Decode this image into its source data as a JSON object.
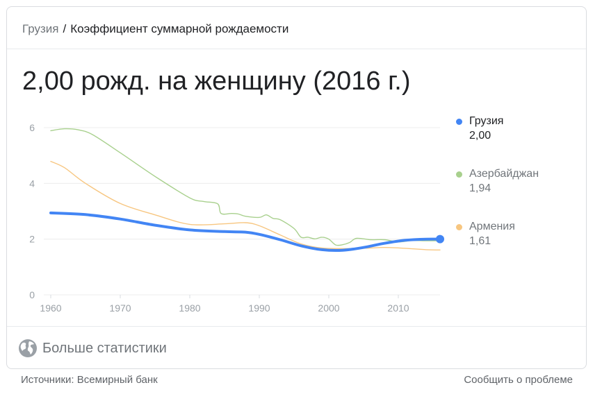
{
  "breadcrumb": {
    "country": "Грузия",
    "separator": "/",
    "metric": "Коэффициент суммарной рождаемости"
  },
  "headline": "2,00 рожд. на женщину (2016 г.)",
  "legend": [
    {
      "name": "Грузия",
      "value": "2,00",
      "color": "#4285f4",
      "active": true
    },
    {
      "name": "Азербайджан",
      "value": "1,94",
      "color": "#a8d08d",
      "active": false
    },
    {
      "name": "Армения",
      "value": "1,61",
      "color": "#f7c680",
      "active": false
    }
  ],
  "footer": {
    "more_label": "Больше статистики",
    "sources": "Источники: Всемирный банк",
    "report": "Сообщить о проблеме"
  },
  "icons": {
    "more": "globe-icon"
  },
  "chart_data": {
    "type": "line",
    "xlim": [
      1960,
      2016
    ],
    "ylim": [
      0,
      6
    ],
    "xticks": [
      "1960",
      "1970",
      "1980",
      "1990",
      "2000",
      "2010"
    ],
    "yticks": [
      "0",
      "2",
      "4",
      "6"
    ],
    "grid": true,
    "legend_position": "right",
    "series": [
      {
        "name": "Грузия",
        "color": "#4285f4",
        "x": [
          1960,
          1965,
          1970,
          1975,
          1980,
          1985,
          1988,
          1990,
          1993,
          1996,
          1999,
          2002,
          2005,
          2008,
          2011,
          2014,
          2016
        ],
        "y": [
          2.94,
          2.88,
          2.72,
          2.5,
          2.33,
          2.27,
          2.25,
          2.17,
          1.98,
          1.76,
          1.62,
          1.6,
          1.7,
          1.85,
          1.96,
          2.0,
          2.0
        ]
      },
      {
        "name": "Азербайджан",
        "color": "#a8d08d",
        "x": [
          1960,
          1962,
          1964,
          1966,
          1970,
          1975,
          1980,
          1982,
          1984,
          1984.5,
          1986,
          1987,
          1988,
          1990,
          1991,
          1992,
          1993,
          1995,
          1996,
          1997,
          1998,
          1999,
          2000,
          2001,
          2002,
          2003,
          2004,
          2006,
          2008,
          2010,
          2012,
          2014,
          2016
        ],
        "y": [
          5.89,
          5.96,
          5.92,
          5.75,
          5.1,
          4.25,
          3.48,
          3.35,
          3.27,
          2.92,
          2.92,
          2.9,
          2.82,
          2.78,
          2.87,
          2.74,
          2.7,
          2.38,
          2.07,
          2.07,
          2.01,
          2.07,
          2.0,
          1.79,
          1.8,
          1.88,
          2.03,
          1.98,
          1.98,
          1.9,
          1.95,
          1.94,
          1.94
        ]
      },
      {
        "name": "Армения",
        "color": "#f7c680",
        "x": [
          1960,
          1962,
          1965,
          1970,
          1975,
          1980,
          1985,
          1988,
          1990,
          1993,
          1996,
          1999,
          2002,
          2005,
          2008,
          2011,
          2014,
          2016
        ],
        "y": [
          4.79,
          4.56,
          4.0,
          3.28,
          2.87,
          2.53,
          2.55,
          2.59,
          2.48,
          2.15,
          1.83,
          1.68,
          1.66,
          1.67,
          1.7,
          1.67,
          1.62,
          1.61
        ]
      }
    ]
  }
}
